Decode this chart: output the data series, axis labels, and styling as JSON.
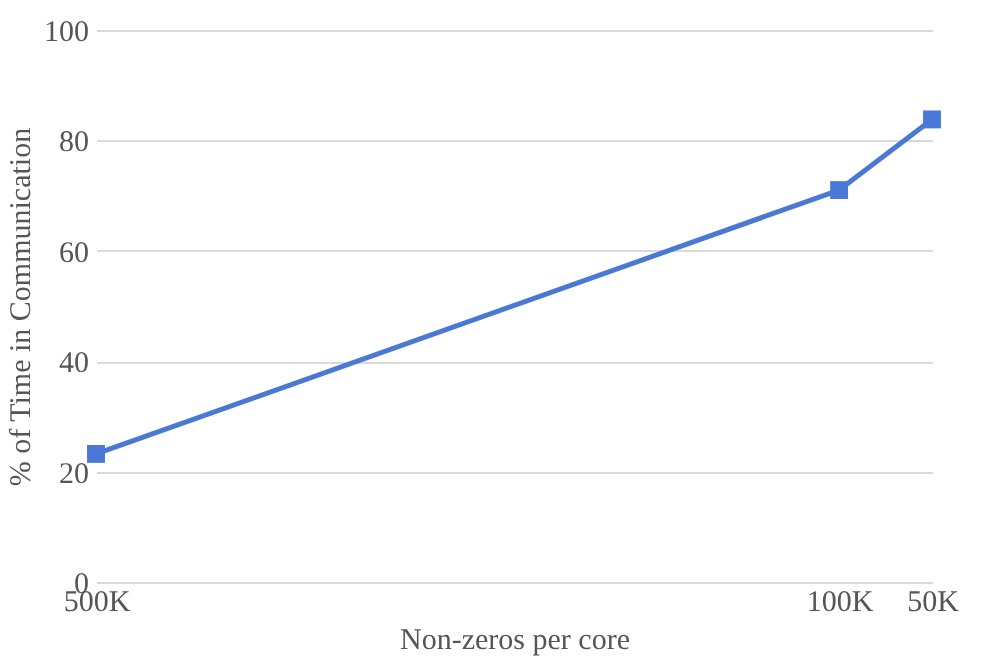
{
  "chart_data": {
    "type": "line",
    "xlabel": "Non-zeros per core",
    "ylabel": "% of Time in Communication",
    "x": [
      500000,
      100000,
      50000
    ],
    "series": [
      {
        "color": "#4a78d6",
        "values": [
          23.2,
          71.0,
          83.8
        ]
      }
    ],
    "xlim": [
      500000,
      50000
    ],
    "xticks": [
      {
        "value": 500000,
        "label": "500K"
      },
      {
        "value": 100000,
        "label": "100K"
      },
      {
        "value": 50000,
        "label": "50K"
      }
    ],
    "ylim": [
      0,
      100
    ],
    "yticks": [
      0,
      20,
      40,
      60,
      80,
      100
    ],
    "grid": "y",
    "marker": "square",
    "line_style": "solid"
  }
}
